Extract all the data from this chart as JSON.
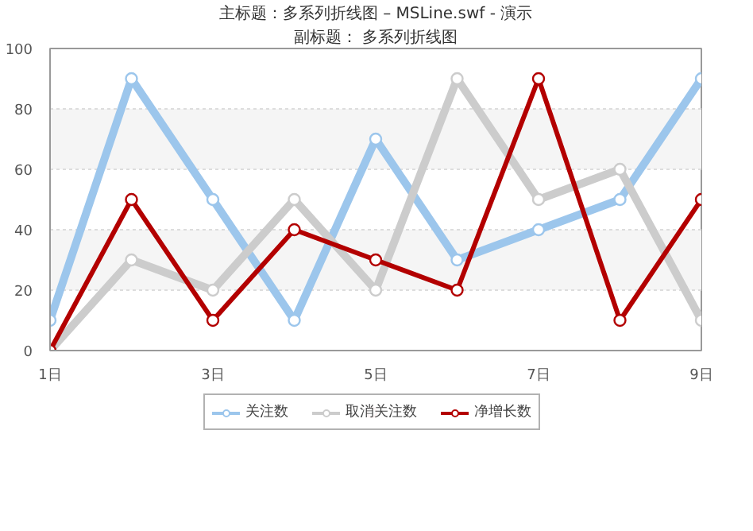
{
  "chart_data": {
    "type": "line",
    "title": "主标题：多系列折线图 – MSLine.swf - 演示",
    "subtitle": "副标题： 多系列折线图",
    "categories": [
      "1日",
      null,
      "3日",
      null,
      "5日",
      null,
      "7日",
      null,
      "9日"
    ],
    "series": [
      {
        "name": "关注数",
        "color": "#9cc6ec",
        "values": [
          10,
          90,
          50,
          10,
          70,
          30,
          40,
          50,
          90
        ]
      },
      {
        "name": "取消关注数",
        "color": "#cccccc",
        "values": [
          0,
          30,
          20,
          50,
          20,
          90,
          50,
          60,
          10
        ]
      },
      {
        "name": "净增长数",
        "color": "#b30000",
        "values": [
          0,
          50,
          10,
          40,
          30,
          20,
          90,
          10,
          50
        ]
      }
    ],
    "ylim": [
      0,
      100
    ],
    "yticks": [
      0,
      20,
      40,
      60,
      80,
      100
    ],
    "grid": "y",
    "legend": "bottom",
    "marker": "circle",
    "line_style": "solid"
  }
}
